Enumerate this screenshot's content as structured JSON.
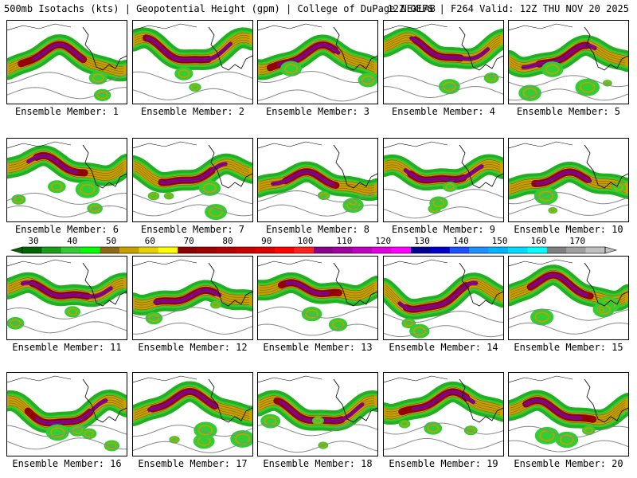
{
  "header": {
    "left": "500mb Isotachs (kts) | Geopotential Height (gpm) | College of DuPage NEXLAB",
    "right": "12Z GEFS | F264 Valid: 12Z THU NOV 20 2025"
  },
  "panels": [
    {
      "label": "Ensemble Member: 1"
    },
    {
      "label": "Ensemble Member: 2"
    },
    {
      "label": "Ensemble Member: 3"
    },
    {
      "label": "Ensemble Member: 4"
    },
    {
      "label": "Ensemble Member: 5"
    },
    {
      "label": "Ensemble Member: 6"
    },
    {
      "label": "Ensemble Member: 7"
    },
    {
      "label": "Ensemble Member: 8"
    },
    {
      "label": "Ensemble Member: 9"
    },
    {
      "label": "Ensemble Member: 10"
    },
    {
      "label": "Ensemble Member: 11"
    },
    {
      "label": "Ensemble Member: 12"
    },
    {
      "label": "Ensemble Member: 13"
    },
    {
      "label": "Ensemble Member: 14"
    },
    {
      "label": "Ensemble Member: 15"
    },
    {
      "label": "Ensemble Member: 16"
    },
    {
      "label": "Ensemble Member: 17"
    },
    {
      "label": "Ensemble Member: 18"
    },
    {
      "label": "Ensemble Member: 19"
    },
    {
      "label": "Ensemble Member: 20"
    }
  ],
  "colorbar": {
    "labels": [
      "30",
      "40",
      "50",
      "60",
      "70",
      "80",
      "90",
      "100",
      "110",
      "120",
      "130",
      "140",
      "150",
      "160",
      "170"
    ],
    "colors": [
      "#006400",
      "#1a9e1a",
      "#33cc33",
      "#00ff00",
      "#8b6914",
      "#c8a000",
      "#e6d200",
      "#ffff00",
      "#8b0000",
      "#a00000",
      "#b40000",
      "#c80000",
      "#dc0000",
      "#ff0000",
      "#ff2020",
      "#8b008b",
      "#a000a0",
      "#c000c0",
      "#e000e0",
      "#ff00ff",
      "#000090",
      "#0000c8",
      "#1e50ff",
      "#1e90ff",
      "#00b4ff",
      "#00dcff",
      "#00ffff",
      "#808080",
      "#a0a0a0",
      "#c0c0c0"
    ]
  }
}
